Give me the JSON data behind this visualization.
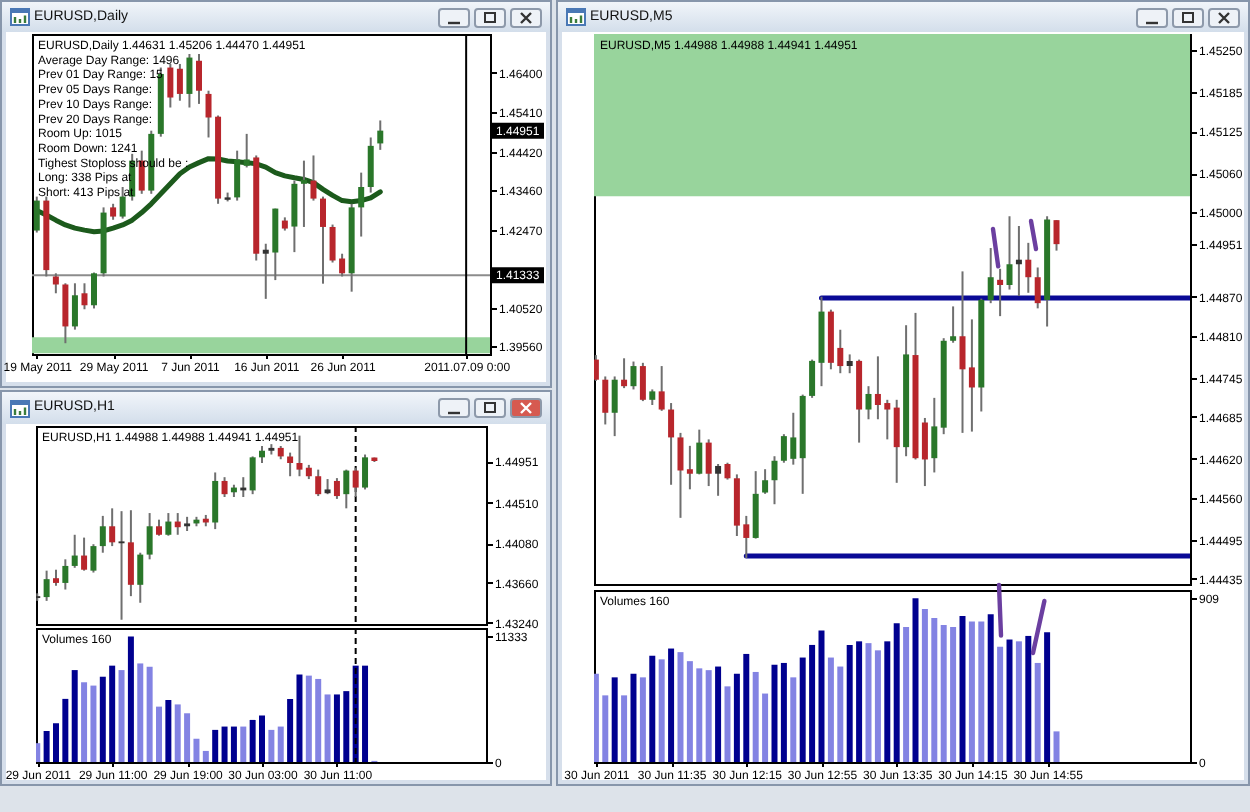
{
  "chart_data": [
    {
      "type": "candlestick",
      "title": "EURUSD,Daily",
      "subtitle": "EURUSD,Daily 1.44631 1.45206 1.44470 1.44951",
      "annotations": [
        "Average Day Range: 1496",
        "Prev 01 Day Range: 15",
        "Prev 05 Days Range:",
        "Prev 10 Days Range:",
        "Prev 20 Days Range:",
        "Room Up: 1015",
        "Room Down: 1241",
        "Tighest Stoploss should be :",
        "Long: 338 Pips at",
        "Short: 413 Pips at",
        {
          "text": "1.44951",
          "y": 1.44951
        }
      ],
      "categories": [
        "19 May 2011",
        null,
        null,
        null,
        null,
        null,
        null,
        null,
        "29 May 2011",
        null,
        null,
        null,
        null,
        null,
        null,
        null,
        "7 Jun 2011",
        null,
        null,
        null,
        null,
        null,
        null,
        null,
        "16 Jun 2011",
        null,
        null,
        null,
        null,
        null,
        null,
        null,
        "26 Jun 2011",
        null,
        null,
        null,
        null,
        null,
        null,
        null,
        null,
        null,
        null,
        null,
        null,
        "2011.07.09 0:00",
        null,
        null
      ],
      "ohlc": [
        [
          1.4245,
          1.433,
          1.424,
          1.432
        ],
        [
          1.432,
          1.433,
          1.413,
          1.4146
        ],
        [
          1.413,
          1.4138,
          1.4088,
          1.411
        ],
        [
          1.411,
          1.4113,
          1.3963,
          1.4005
        ],
        [
          1.4005,
          1.4113,
          1.3997,
          1.4083
        ],
        [
          1.4088,
          1.4113,
          1.4048,
          1.4058
        ],
        [
          1.4058,
          1.414,
          1.405,
          1.4138
        ],
        [
          1.4138,
          1.4303,
          1.413,
          1.429
        ],
        [
          1.4303,
          1.4312,
          1.4272,
          1.428
        ],
        [
          1.428,
          1.4354,
          1.4275,
          1.433
        ],
        [
          1.433,
          1.4437,
          1.432,
          1.442
        ],
        [
          1.442,
          1.4445,
          1.4337,
          1.4345
        ],
        [
          1.4345,
          1.4495,
          1.4337,
          1.4487
        ],
        [
          1.4487,
          1.4653,
          1.448,
          1.4637
        ],
        [
          1.4653,
          1.4662,
          1.4553,
          1.4578
        ],
        [
          1.465,
          1.4662,
          1.457,
          1.4587
        ],
        [
          1.4587,
          1.4687,
          1.4553,
          1.4678
        ],
        [
          1.467,
          1.4687,
          1.4562,
          1.4595
        ],
        [
          1.4587,
          1.4595,
          1.4478,
          1.4528
        ],
        [
          1.453,
          1.4533,
          1.4312,
          1.4325
        ],
        [
          1.4322,
          1.434,
          1.4318,
          1.4328
        ],
        [
          1.4328,
          1.4445,
          1.432,
          1.4423
        ],
        [
          1.4407,
          1.4487,
          1.4403,
          1.4423
        ],
        [
          1.4428,
          1.4433,
          1.417,
          1.4187
        ],
        [
          1.4187,
          1.4212,
          1.4074,
          1.4197
        ],
        [
          1.419,
          1.43,
          1.4121,
          1.43
        ],
        [
          1.427,
          1.4278,
          1.4245,
          1.425
        ],
        [
          1.4255,
          1.437,
          1.4191,
          1.4362
        ],
        [
          1.4362,
          1.442,
          1.4254,
          1.4372
        ],
        [
          1.437,
          1.4433,
          1.432,
          1.4325
        ],
        [
          1.4325,
          1.433,
          1.4112,
          1.4254
        ],
        [
          1.4254,
          1.426,
          1.4165,
          1.417
        ],
        [
          1.4175,
          1.4187,
          1.413,
          1.4138
        ],
        [
          1.4138,
          1.4312,
          1.4092,
          1.4303
        ],
        [
          1.4303,
          1.439,
          1.423,
          1.4354
        ],
        [
          1.4354,
          1.4478,
          1.434,
          1.4457
        ],
        [
          1.44631,
          1.45206,
          1.4447,
          1.44951
        ],
        null,
        null,
        null,
        null,
        null,
        null,
        null,
        null,
        null,
        null,
        null
      ],
      "colors": [
        "#2a772a",
        "#b8262c",
        "#b8262c",
        "#b8262c",
        "#2a772a",
        "#b8262c",
        "#2a772a",
        "#2a772a",
        "#b8262c",
        "#2a772a",
        "#2a772a",
        "#b8262c",
        "#2a772a",
        "#2a772a",
        "#b8262c",
        "#b8262c",
        "#2a772a",
        "#b8262c",
        "#b8262c",
        "#b8262c",
        "#333333",
        "#2a772a",
        "#2a772a",
        "#b8262c",
        "#333333",
        "#2a772a",
        "#b8262c",
        "#2a772a",
        "#2a772a",
        "#b8262c",
        "#b8262c",
        "#b8262c",
        "#b8262c",
        "#2a772a",
        "#2a772a",
        "#2a772a",
        "#2a772a",
        null,
        null,
        null,
        null,
        null,
        null,
        null,
        null,
        null,
        null,
        null
      ],
      "series": [
        {
          "type": "line",
          "color": "#1c5a1c",
          "values": [
            1.4295,
            1.4284,
            1.4271,
            1.4259,
            1.4251,
            1.4246,
            1.4242,
            1.4244,
            1.4251,
            1.4259,
            1.4271,
            1.429,
            1.4312,
            1.4337,
            1.4362,
            1.4387,
            1.4404,
            1.4415,
            1.4425,
            1.4424,
            1.4419,
            1.4417,
            1.4415,
            1.4412,
            1.4404,
            1.439,
            1.4382,
            1.4377,
            1.4373,
            1.4365,
            1.4348,
            1.4333,
            1.432,
            1.4317,
            1.432,
            1.4327,
            1.4342,
            null,
            null,
            null,
            null,
            null,
            null,
            null,
            null,
            null,
            null,
            null
          ]
        }
      ],
      "bands": [
        {
          "axis": "y",
          "from": 1.3938,
          "to": 1.3978,
          "color": "#98d49c"
        }
      ],
      "ref_lines": [
        {
          "axis": "y",
          "value": 1.41333,
          "label": "1.41333",
          "color": "#8c8c8c"
        },
        {
          "axis": "x",
          "value": "2011.07.09 0:00",
          "color": "#000000"
        }
      ],
      "ylim": [
        1.3936,
        1.4737
      ],
      "yticks": [
        {
          "value": 1.464,
          "label": "1.46400"
        },
        {
          "value": 1.4541,
          "label": "1.45410"
        },
        {
          "value": 1.4442,
          "label": "1.44420"
        },
        {
          "value": 1.4346,
          "label": "1.43460"
        },
        {
          "value": 1.4247,
          "label": "1.42470"
        },
        {
          "value": 1.4052,
          "label": "1.40520"
        },
        {
          "value": 1.3956,
          "label": "1.39560"
        }
      ]
    },
    {
      "type": "candlestick",
      "title": "EURUSD,H1",
      "subtitle": "EURUSD,H1 1.44988 1.44988 1.44941 1.44951",
      "x": [
        "2011-06-29T03:00",
        "2011-06-29T04:00",
        "2011-06-29T05:00",
        "2011-06-29T06:00",
        "2011-06-29T07:00",
        "2011-06-29T08:00",
        "2011-06-29T09:00",
        "2011-06-29T10:00",
        "2011-06-29T11:00",
        "2011-06-29T12:00",
        "2011-06-29T13:00",
        "2011-06-29T14:00",
        "2011-06-29T15:00",
        "2011-06-29T16:00",
        "2011-06-29T17:00",
        "2011-06-29T18:00",
        "2011-06-29T19:00",
        "2011-06-29T20:00",
        "2011-06-29T21:00",
        "2011-06-29T22:00",
        "2011-06-29T23:00",
        "2011-06-30T00:00",
        "2011-06-30T01:00",
        "2011-06-30T02:00",
        "2011-06-30T03:00",
        "2011-06-30T04:00",
        "2011-06-30T05:00",
        "2011-06-30T06:00",
        "2011-06-30T07:00",
        "2011-06-30T08:00",
        "2011-06-30T09:00",
        "2011-06-30T10:00",
        "2011-06-30T11:00",
        "2011-06-30T12:00",
        "2011-06-30T13:00",
        "2011-06-30T14:00",
        "2011-06-30T15:00"
      ],
      "xlim": [
        "2011-06-29T02:52",
        "2011-07-01T02:55"
      ],
      "ohlc": [
        [
          1.4352,
          1.4355,
          1.4347,
          1.435
        ],
        [
          1.4351,
          1.4379,
          1.4347,
          1.437
        ],
        [
          1.4371,
          1.438,
          1.4363,
          1.4366
        ],
        [
          1.4366,
          1.4391,
          1.4359,
          1.4384
        ],
        [
          1.4384,
          1.4417,
          1.4382,
          1.4395
        ],
        [
          1.4395,
          1.4414,
          1.4379,
          1.438
        ],
        [
          1.4379,
          1.4407,
          1.4377,
          1.4405
        ],
        [
          1.4405,
          1.4437,
          1.4398,
          1.4426
        ],
        [
          1.4426,
          1.4445,
          1.4405,
          1.4409
        ],
        [
          1.441,
          1.4442,
          1.4327,
          1.4408
        ],
        [
          1.4409,
          1.4443,
          1.4352,
          1.4364
        ],
        [
          1.4364,
          1.4398,
          1.4345,
          1.4396
        ],
        [
          1.4396,
          1.444,
          1.4391,
          1.4426
        ],
        [
          1.4426,
          1.4433,
          1.4416,
          1.4417
        ],
        [
          1.4417,
          1.444,
          1.4416,
          1.4431
        ],
        [
          1.4431,
          1.444,
          1.4417,
          1.4425
        ],
        [
          1.4426,
          1.4436,
          1.4421,
          1.4429
        ],
        [
          1.4429,
          1.4436,
          1.4426,
          1.4433
        ],
        [
          1.4434,
          1.4438,
          1.4426,
          1.443
        ],
        [
          1.443,
          1.4483,
          1.4423,
          1.4474
        ],
        [
          1.4474,
          1.4478,
          1.4457,
          1.446
        ],
        [
          1.4462,
          1.447,
          1.4457,
          1.4467
        ],
        [
          1.4467,
          1.4478,
          1.4457,
          1.4464
        ],
        [
          1.4464,
          1.45,
          1.446,
          1.4499
        ],
        [
          1.4499,
          1.4511,
          1.4493,
          1.4506
        ],
        [
          1.4506,
          1.4513,
          1.4502,
          1.4509
        ],
        [
          1.4509,
          1.4511,
          1.4497,
          1.45
        ],
        [
          1.45,
          1.4504,
          1.4479,
          1.4493
        ],
        [
          1.4493,
          1.4522,
          1.4479,
          1.4486
        ],
        [
          1.4488,
          1.4491,
          1.4476,
          1.4479
        ],
        [
          1.4479,
          1.4486,
          1.4458,
          1.446
        ],
        [
          1.4461,
          1.4476,
          1.446,
          1.4465
        ],
        [
          1.4474,
          1.4477,
          1.4455,
          1.4458
        ],
        [
          1.446,
          1.4486,
          1.4445,
          1.4485
        ],
        [
          1.4485,
          1.4488,
          1.4457,
          1.4467
        ],
        [
          1.4467,
          1.4502,
          1.4465,
          1.4499
        ],
        [
          1.44988,
          1.44988,
          1.44941,
          1.44951
        ]
      ],
      "colors": [
        "#333333",
        "#2a772a",
        "#b8262c",
        "#2a772a",
        "#2a772a",
        "#b8262c",
        "#2a772a",
        "#2a772a",
        "#b8262c",
        "#333333",
        "#b8262c",
        "#2a772a",
        "#2a772a",
        "#b8262c",
        "#2a772a",
        "#b8262c",
        "#333333",
        "#2a772a",
        "#b8262c",
        "#2a772a",
        "#b8262c",
        "#2a772a",
        "#333333",
        "#2a772a",
        "#2a772a",
        "#333333",
        "#b8262c",
        "#b8262c",
        "#b8262c",
        "#b8262c",
        "#b8262c",
        "#333333",
        "#b8262c",
        "#2a772a",
        "#b8262c",
        "#2a772a",
        "#b8262c"
      ],
      "ref_lines": [
        {
          "axis": "x",
          "value": "2011-06-30T13:00",
          "line_style": "dashed",
          "color": "#000000"
        }
      ],
      "ylim": [
        1.43225,
        1.45322
      ],
      "yticks": [
        {
          "value": 1.44951,
          "label": "1.44951"
        },
        {
          "value": 1.4451,
          "label": "1.44510"
        },
        {
          "value": 1.4408,
          "label": "1.44080"
        },
        {
          "value": 1.4366,
          "label": "1.43660"
        },
        {
          "value": 1.4324,
          "label": "1.43240"
        }
      ],
      "tick_labels": "y"
    },
    {
      "type": "bar",
      "title": "Volumes 160",
      "x": [
        "2011-06-29T03:00",
        "2011-06-29T04:00",
        "2011-06-29T05:00",
        "2011-06-29T06:00",
        "2011-06-29T07:00",
        "2011-06-29T08:00",
        "2011-06-29T09:00",
        "2011-06-29T10:00",
        "2011-06-29T11:00",
        "2011-06-29T12:00",
        "2011-06-29T13:00",
        "2011-06-29T14:00",
        "2011-06-29T15:00",
        "2011-06-29T16:00",
        "2011-06-29T17:00",
        "2011-06-29T18:00",
        "2011-06-29T19:00",
        "2011-06-29T20:00",
        "2011-06-29T21:00",
        "2011-06-29T22:00",
        "2011-06-29T23:00",
        "2011-06-30T00:00",
        "2011-06-30T01:00",
        "2011-06-30T02:00",
        "2011-06-30T03:00",
        "2011-06-30T04:00",
        "2011-06-30T05:00",
        "2011-06-30T06:00",
        "2011-06-30T07:00",
        "2011-06-30T08:00",
        "2011-06-30T09:00",
        "2011-06-30T10:00",
        "2011-06-30T11:00",
        "2011-06-30T12:00",
        "2011-06-30T13:00",
        "2011-06-30T14:00",
        "2011-06-30T15:00"
      ],
      "xlim": [
        "2011-06-29T02:52",
        "2011-07-01T02:55"
      ],
      "xticks": [
        {
          "value": "2011-06-29T03:00",
          "label": "29 Jun 2011"
        },
        {
          "value": "2011-06-29T11:00",
          "label": "29 Jun 11:00"
        },
        {
          "value": "2011-06-29T19:00",
          "label": "29 Jun 19:00"
        },
        {
          "value": "2011-06-30T03:00",
          "label": "30 Jun 03:00"
        },
        {
          "value": "2011-06-30T11:00",
          "label": "30 Jun 11:00"
        }
      ],
      "values": [
        1700,
        2800,
        3500,
        5700,
        8300,
        7200,
        6900,
        7700,
        8700,
        8300,
        11333,
        8900,
        8600,
        5000,
        5600,
        5200,
        4400,
        2100,
        1000,
        2900,
        3200,
        3200,
        3200,
        3800,
        4200,
        2900,
        3200,
        5700,
        7900,
        7800,
        7500,
        6100,
        6100,
        6400,
        8700,
        8700,
        100
      ],
      "colors": [
        "#8383e3",
        "#00008f",
        "#00008f",
        "#00008f",
        "#00008f",
        "#8383e3",
        "#8383e3",
        "#00008f",
        "#00008f",
        "#8383e3",
        "#00008f",
        "#8383e3",
        "#8383e3",
        "#8383e3",
        "#00008f",
        "#8383e3",
        "#8383e3",
        "#8383e3",
        "#8383e3",
        "#00008f",
        "#00008f",
        "#00008f",
        "#8383e3",
        "#00008f",
        "#00008f",
        "#8383e3",
        "#8383e3",
        "#00008f",
        "#00008f",
        "#8383e3",
        "#8383e3",
        "#8383e3",
        "#00008f",
        "#00008f",
        "#00008f",
        "#00008f",
        "#8383e3"
      ],
      "ref_lines": [
        {
          "axis": "x",
          "value": "2011-06-30T13:00",
          "line_style": "dashed",
          "color": "#000000"
        }
      ],
      "ylim": [
        0,
        12100
      ],
      "yticks": [
        0,
        11333
      ]
    },
    {
      "type": "candlestick",
      "title": "EURUSD,M5",
      "subtitle": "EURUSD,M5 1.44988 1.44988 1.44941 1.44951",
      "x": [
        "2011-06-30T10:55",
        "2011-06-30T11:00",
        "2011-06-30T11:05",
        "2011-06-30T11:10",
        "2011-06-30T11:15",
        "2011-06-30T11:20",
        "2011-06-30T11:25",
        "2011-06-30T11:30",
        "2011-06-30T11:35",
        "2011-06-30T11:40",
        "2011-06-30T11:45",
        "2011-06-30T11:50",
        "2011-06-30T11:55",
        "2011-06-30T12:00",
        "2011-06-30T12:05",
        "2011-06-30T12:10",
        "2011-06-30T12:15",
        "2011-06-30T12:20",
        "2011-06-30T12:25",
        "2011-06-30T12:30",
        "2011-06-30T12:35",
        "2011-06-30T12:40",
        "2011-06-30T12:45",
        "2011-06-30T12:50",
        "2011-06-30T12:55",
        "2011-06-30T13:00",
        "2011-06-30T13:05",
        "2011-06-30T13:10",
        "2011-06-30T13:15",
        "2011-06-30T13:20",
        "2011-06-30T13:25",
        "2011-06-30T13:30",
        "2011-06-30T13:35",
        "2011-06-30T13:40",
        "2011-06-30T13:45",
        "2011-06-30T13:50",
        "2011-06-30T13:55",
        "2011-06-30T14:00",
        "2011-06-30T14:05",
        "2011-06-30T14:10",
        "2011-06-30T14:15",
        "2011-06-30T14:20",
        "2011-06-30T14:25",
        "2011-06-30T14:30",
        "2011-06-30T14:35",
        "2011-06-30T14:40",
        "2011-06-30T14:45",
        "2011-06-30T14:50",
        "2011-06-30T14:55",
        "2011-06-30T15:00"
      ],
      "xlim": [
        "2011-06-30T10:54",
        "2011-06-30T16:11"
      ],
      "ohlc": [
        [
          1.44773,
          1.4478,
          1.4474,
          1.44742
        ],
        [
          1.44742,
          1.44747,
          1.44673,
          1.44691
        ],
        [
          1.44691,
          1.44747,
          1.44655,
          1.44742
        ],
        [
          1.44742,
          1.44775,
          1.44729,
          1.44732
        ],
        [
          1.44732,
          1.4477,
          1.44727,
          1.44763
        ],
        [
          1.44763,
          1.44768,
          1.44709,
          1.44711
        ],
        [
          1.44711,
          1.44727,
          1.44703,
          1.44724
        ],
        [
          1.44724,
          1.44763,
          1.44694,
          1.44696
        ],
        [
          1.44696,
          1.44706,
          1.4458,
          1.44653
        ],
        [
          1.44653,
          1.4466,
          1.44529,
          1.44602
        ],
        [
          1.44604,
          1.4464,
          1.44573,
          1.44597
        ],
        [
          1.44597,
          1.44665,
          1.44596,
          1.44645
        ],
        [
          1.44645,
          1.4465,
          1.44578,
          1.44597
        ],
        [
          1.44597,
          1.44612,
          1.44563,
          1.44609
        ],
        [
          1.44612,
          1.44614,
          1.44588,
          1.4459
        ],
        [
          1.4459,
          1.44596,
          1.44501,
          1.44517
        ],
        [
          1.44519,
          1.44532,
          1.44467,
          1.44498
        ],
        [
          1.44498,
          1.44601,
          1.44497,
          1.44566
        ],
        [
          1.44568,
          1.44604,
          1.44566,
          1.44587
        ],
        [
          1.44587,
          1.44624,
          1.4455,
          1.44617
        ],
        [
          1.44617,
          1.44658,
          1.44614,
          1.44655
        ],
        [
          1.4462,
          1.44691,
          1.44611,
          1.44653
        ],
        [
          1.44621,
          1.44719,
          1.44566,
          1.44717
        ],
        [
          1.44717,
          1.44773,
          1.44714,
          1.44771
        ],
        [
          1.44768,
          1.4487,
          1.44732,
          1.44847
        ],
        [
          1.44847,
          1.4485,
          1.44758,
          1.44768
        ],
        [
          1.44791,
          1.44819,
          1.44752,
          1.44763
        ],
        [
          1.44763,
          1.44781,
          1.44752,
          1.44771
        ],
        [
          1.44771,
          1.44773,
          1.44645,
          1.44696
        ],
        [
          1.44696,
          1.44732,
          1.44681,
          1.4472
        ],
        [
          1.4472,
          1.44778,
          1.44681,
          1.44703
        ],
        [
          1.44706,
          1.44711,
          1.4465,
          1.44696
        ],
        [
          1.44699,
          1.44711,
          1.44583,
          1.44638
        ],
        [
          1.44638,
          1.44826,
          1.44624,
          1.44781
        ],
        [
          1.4478,
          1.44845,
          1.44619,
          1.44621
        ],
        [
          1.44676,
          1.44683,
          1.44578,
          1.44619
        ],
        [
          1.44621,
          1.44714,
          1.44599,
          1.4467
        ],
        [
          1.44668,
          1.44806,
          1.44658,
          1.44802
        ],
        [
          1.44802,
          1.44855,
          1.44799,
          1.44809
        ],
        [
          1.44809,
          1.44909,
          1.4466,
          1.44758
        ],
        [
          1.44761,
          1.44835,
          1.44662,
          1.4473
        ],
        [
          1.4473,
          1.44867,
          1.44693,
          1.44865
        ],
        [
          1.44865,
          1.44945,
          1.4486,
          1.449
        ],
        [
          1.44896,
          1.44913,
          1.4484,
          1.44888
        ],
        [
          1.44888,
          1.44994,
          1.44881,
          1.4492
        ],
        [
          1.4492,
          1.44979,
          1.44871,
          1.44927
        ],
        [
          1.44927,
          1.44953,
          1.44876,
          1.449
        ],
        [
          1.449,
          1.44915,
          1.44852,
          1.4486
        ],
        [
          1.44865,
          1.44994,
          1.44824,
          1.44989
        ],
        [
          1.44988,
          1.44988,
          1.44941,
          1.44951
        ]
      ],
      "colors": [
        "#b8262c",
        "#b8262c",
        "#2a772a",
        "#b8262c",
        "#2a772a",
        "#b8262c",
        "#2a772a",
        "#b8262c",
        "#b8262c",
        "#b8262c",
        "#b8262c",
        "#2a772a",
        "#b8262c",
        "#333333",
        "#b8262c",
        "#b8262c",
        "#b8262c",
        "#2a772a",
        "#2a772a",
        "#2a772a",
        "#2a772a",
        "#2a772a",
        "#2a772a",
        "#2a772a",
        "#2a772a",
        "#b8262c",
        "#b8262c",
        "#333333",
        "#b8262c",
        "#2a772a",
        "#b8262c",
        "#b8262c",
        "#b8262c",
        "#2a772a",
        "#b8262c",
        "#b8262c",
        "#2a772a",
        "#2a772a",
        "#2a772a",
        "#b8262c",
        "#b8262c",
        "#2a772a",
        "#2a772a",
        "#b8262c",
        "#2a772a",
        "#333333",
        "#b8262c",
        "#b8262c",
        "#2a772a",
        "#b8262c"
      ],
      "series": [
        {
          "type": "line",
          "color": "#0a0a96",
          "x": [
            "2011-06-30T12:55",
            "2011-06-30T16:11"
          ],
          "values": [
            1.44868,
            1.44868
          ]
        },
        {
          "type": "line",
          "color": "#0a0a96",
          "x": [
            "2011-06-30T12:15",
            "2011-06-30T16:11"
          ],
          "values": [
            1.4447,
            1.4447
          ]
        }
      ],
      "bands": [
        {
          "axis": "y",
          "from": 1.45025,
          "to": 1.45275,
          "color": "#98d49c"
        }
      ],
      "ylim": [
        1.44427,
        1.45275
      ],
      "yticks": [
        {
          "value": 1.4525,
          "label": "1.45250"
        },
        1.45185,
        1.45125,
        {
          "value": 1.4506,
          "label": "1.45060"
        },
        {
          "value": 1.45,
          "label": "1.45000"
        },
        1.44951,
        {
          "value": 1.4487,
          "label": "1.44870"
        },
        {
          "value": 1.4481,
          "label": "1.44810"
        },
        1.44745,
        1.44685,
        {
          "value": 1.4462,
          "label": "1.44620"
        },
        {
          "value": 1.4456,
          "label": "1.44560"
        },
        1.44495,
        1.44435
      ],
      "tick_labels": "y"
    },
    {
      "type": "bar",
      "title": "Volumes 160",
      "x": [
        "2011-06-30T10:55",
        "2011-06-30T11:00",
        "2011-06-30T11:05",
        "2011-06-30T11:10",
        "2011-06-30T11:15",
        "2011-06-30T11:20",
        "2011-06-30T11:25",
        "2011-06-30T11:30",
        "2011-06-30T11:35",
        "2011-06-30T11:40",
        "2011-06-30T11:45",
        "2011-06-30T11:50",
        "2011-06-30T11:55",
        "2011-06-30T12:00",
        "2011-06-30T12:05",
        "2011-06-30T12:10",
        "2011-06-30T12:15",
        "2011-06-30T12:20",
        "2011-06-30T12:25",
        "2011-06-30T12:30",
        "2011-06-30T12:35",
        "2011-06-30T12:40",
        "2011-06-30T12:45",
        "2011-06-30T12:50",
        "2011-06-30T12:55",
        "2011-06-30T13:00",
        "2011-06-30T13:05",
        "2011-06-30T13:10",
        "2011-06-30T13:15",
        "2011-06-30T13:20",
        "2011-06-30T13:25",
        "2011-06-30T13:30",
        "2011-06-30T13:35",
        "2011-06-30T13:40",
        "2011-06-30T13:45",
        "2011-06-30T13:50",
        "2011-06-30T13:55",
        "2011-06-30T14:00",
        "2011-06-30T14:05",
        "2011-06-30T14:10",
        "2011-06-30T14:15",
        "2011-06-30T14:20",
        "2011-06-30T14:25",
        "2011-06-30T14:30",
        "2011-06-30T14:35",
        "2011-06-30T14:40",
        "2011-06-30T14:45",
        "2011-06-30T14:50",
        "2011-06-30T14:55",
        "2011-06-30T15:00"
      ],
      "xlim": [
        "2011-06-30T10:54",
        "2011-06-30T16:11"
      ],
      "xticks": [
        {
          "value": "2011-06-30T10:55",
          "label": "30 Jun 2011"
        },
        {
          "value": "2011-06-30T11:35",
          "label": "30 Jun 11:35"
        },
        {
          "value": "2011-06-30T12:15",
          "label": "30 Jun 12:15"
        },
        {
          "value": "2011-06-30T12:55",
          "label": "30 Jun 12:55"
        },
        {
          "value": "2011-06-30T13:35",
          "label": "30 Jun 13:35"
        },
        {
          "value": "2011-06-30T14:15",
          "label": "30 Jun 14:15"
        },
        {
          "value": "2011-06-30T14:55",
          "label": "30 Jun 14:55"
        }
      ],
      "values": [
        490,
        370,
        470,
        370,
        490,
        470,
        590,
        570,
        630,
        610,
        560,
        520,
        510,
        530,
        420,
        490,
        600,
        500,
        380,
        540,
        550,
        470,
        580,
        650,
        730,
        580,
        530,
        650,
        670,
        660,
        620,
        670,
        770,
        750,
        909,
        850,
        800,
        760,
        750,
        810,
        780,
        780,
        820,
        640,
        680,
        670,
        700,
        550,
        720,
        170
      ],
      "colors": [
        "#8383e3",
        "#8383e3",
        "#00008f",
        "#8383e3",
        "#00008f",
        "#8383e3",
        "#00008f",
        "#8383e3",
        "#00008f",
        "#8383e3",
        "#8383e3",
        "#8383e3",
        "#8383e3",
        "#00008f",
        "#8383e3",
        "#00008f",
        "#00008f",
        "#8383e3",
        "#8383e3",
        "#00008f",
        "#00008f",
        "#8383e3",
        "#00008f",
        "#00008f",
        "#00008f",
        "#8383e3",
        "#8383e3",
        "#00008f",
        "#00008f",
        "#8383e3",
        "#8383e3",
        "#00008f",
        "#00008f",
        "#8383e3",
        "#00008f",
        "#8383e3",
        "#8383e3",
        "#8383e3",
        "#8383e3",
        "#00008f",
        "#8383e3",
        "#8383e3",
        "#00008f",
        "#8383e3",
        "#00008f",
        "#8383e3",
        "#00008f",
        "#8383e3",
        "#00008f",
        "#8383e3"
      ],
      "ylim": [
        0,
        955
      ],
      "yticks": [
        0,
        909
      ]
    }
  ]
}
